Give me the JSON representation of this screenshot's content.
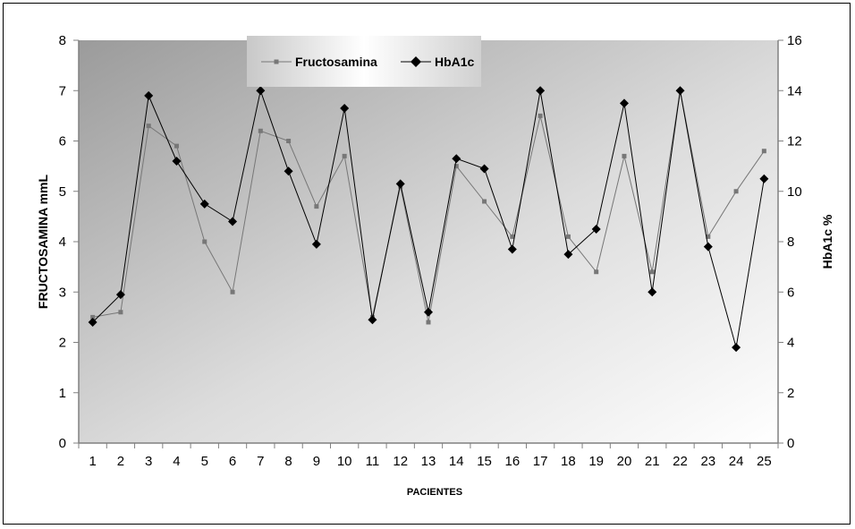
{
  "chart_data": {
    "type": "line",
    "xlabel": "PACIENTES",
    "ylabel": "FRUCTOSAMINA mmL",
    "y2label": "HbA1c %",
    "categories": [
      "1",
      "2",
      "3",
      "4",
      "5",
      "6",
      "7",
      "8",
      "9",
      "10",
      "11",
      "12",
      "13",
      "14",
      "15",
      "16",
      "17",
      "18",
      "19",
      "20",
      "21",
      "22",
      "23",
      "24",
      "25"
    ],
    "ylim": [
      0,
      8
    ],
    "y2lim": [
      0,
      16
    ],
    "yticks": [
      "0",
      "1",
      "2",
      "3",
      "4",
      "5",
      "6",
      "7",
      "8"
    ],
    "y2ticks": [
      "0",
      "2",
      "4",
      "6",
      "8",
      "10",
      "12",
      "14",
      "16"
    ],
    "grid": false,
    "legend_position": "top",
    "series": [
      {
        "name": "Fructosamina",
        "axis": "left",
        "marker": "square",
        "color": "#777777",
        "values": [
          2.5,
          2.6,
          6.3,
          5.9,
          4.0,
          3.0,
          6.2,
          6.0,
          4.7,
          5.7,
          2.5,
          5.1,
          2.4,
          5.5,
          4.8,
          4.1,
          6.5,
          4.1,
          3.4,
          5.7,
          3.4,
          7.0,
          4.1,
          5.0,
          5.8
        ]
      },
      {
        "name": "HbA1c",
        "axis": "right",
        "marker": "diamond",
        "color": "#000000",
        "values": [
          4.8,
          5.9,
          13.8,
          11.2,
          9.5,
          8.8,
          14.0,
          10.8,
          7.9,
          13.3,
          4.9,
          10.3,
          5.2,
          11.3,
          10.9,
          7.7,
          14.0,
          7.5,
          8.5,
          13.5,
          6.0,
          14.0,
          7.8,
          3.8,
          10.5
        ]
      }
    ]
  }
}
